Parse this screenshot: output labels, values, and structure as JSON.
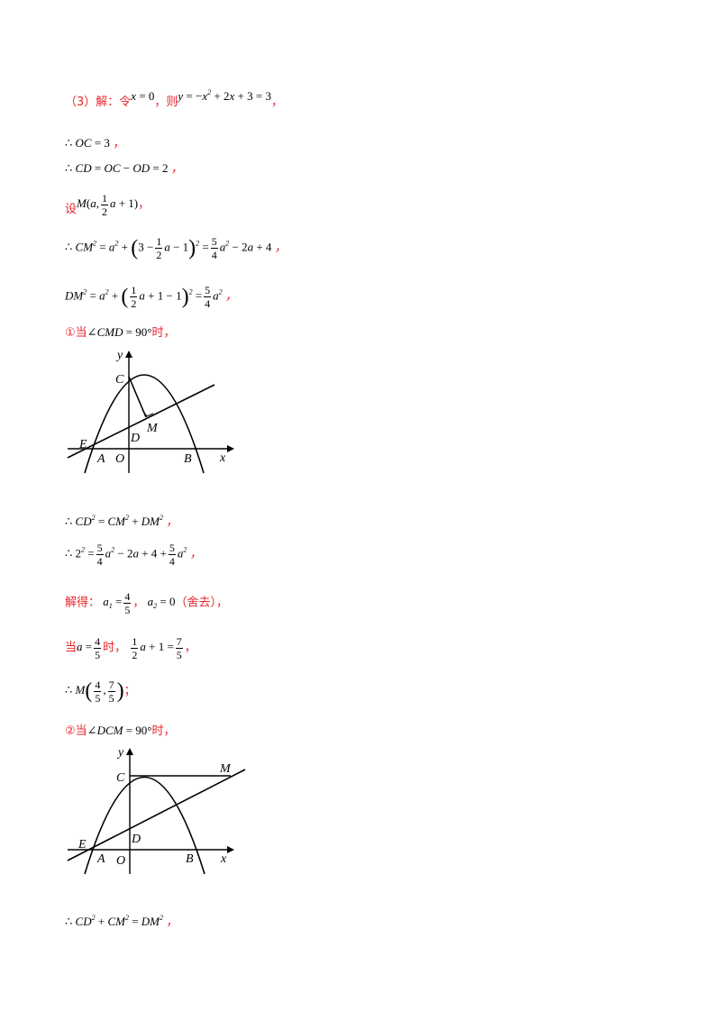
{
  "lines": {
    "l1": {
      "prefix": "（3）解：令",
      "eq1": "x = 0",
      "mid": "，则",
      "eq2": "y = −x² + 2x + 3 = 3",
      "end": "，"
    },
    "l2": {
      "text": "∴ OC = 3 ，"
    },
    "l3": {
      "text": "∴ CD = OC − OD = 2 ，"
    },
    "l4": {
      "prefix": "设",
      "expr": "M(a, ½a + 1)",
      "end": "，"
    },
    "l5": {
      "expr": "∴ CM² = a² + (3 − ½a − 1)² = 5/4 a² − 2a + 4 ，"
    },
    "l6": {
      "expr": "DM² = a² + (½a + 1 − 1)² = 5/4 a² ，"
    },
    "l7": {
      "prefix": "①当",
      "expr": "∠CMD = 90°",
      "end": "时，"
    },
    "l8": {
      "text": "∴ CD² = CM² + DM² ，"
    },
    "l9": {
      "expr": "∴ 2² = 5/4 a² − 2a + 4 + 5/4 a² ，"
    },
    "l10": {
      "prefix": "解得：",
      "expr": "a₁ = 4/5 ， a₂ = 0",
      "note": "（舍去），"
    },
    "l11": {
      "prefix": "当",
      "expr": "a = 4/5",
      "mid": "时，",
      "expr2": "½a + 1 = 7/5 ，"
    },
    "l12": {
      "expr": "∴ M(4/5, 7/5)",
      "end": "；"
    },
    "l13": {
      "prefix": "②当",
      "expr": "∠DCM = 90°",
      "end": "时，"
    },
    "l14": {
      "text": "∴ CD² + CM² = DM² ，"
    }
  },
  "figure1": {
    "labels": [
      "y",
      "C",
      "M",
      "D",
      "E",
      "A",
      "O",
      "B",
      "x"
    ]
  },
  "figure2": {
    "labels": [
      "y",
      "C",
      "M",
      "D",
      "E",
      "A",
      "O",
      "B",
      "x"
    ]
  }
}
